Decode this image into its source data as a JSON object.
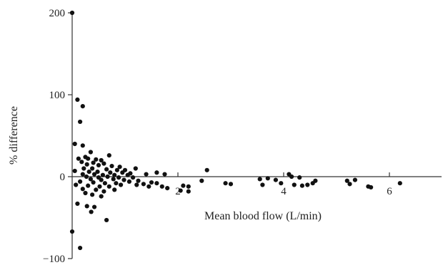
{
  "chart_data": {
    "type": "scatter",
    "xlabel": "Mean blood flow (L/min)",
    "ylabel": "% difference",
    "xlim": [
      0,
      7
    ],
    "ylim": [
      -100,
      200
    ],
    "xticks": [
      2,
      4,
      6
    ],
    "yticks": [
      -100,
      0,
      100,
      200
    ],
    "xtick_labels": [
      "2",
      "4",
      "6"
    ],
    "ytick_labels": [
      "−100",
      "0",
      "100",
      "200"
    ],
    "grid": false,
    "marker_color": "#111111",
    "points": [
      {
        "x": 0.0,
        "y": 200
      },
      {
        "x": 0.1,
        "y": 94
      },
      {
        "x": 0.2,
        "y": 86
      },
      {
        "x": 0.15,
        "y": 67
      },
      {
        "x": 0.05,
        "y": 40
      },
      {
        "x": 0.2,
        "y": 38
      },
      {
        "x": 0.35,
        "y": 30
      },
      {
        "x": 0.7,
        "y": 26
      },
      {
        "x": 0.25,
        "y": 24
      },
      {
        "x": 0.12,
        "y": 22
      },
      {
        "x": 0.3,
        "y": 22
      },
      {
        "x": 0.45,
        "y": 21
      },
      {
        "x": 0.55,
        "y": 20
      },
      {
        "x": 0.18,
        "y": 18
      },
      {
        "x": 0.4,
        "y": 17
      },
      {
        "x": 0.6,
        "y": 16
      },
      {
        "x": 0.28,
        "y": 15
      },
      {
        "x": 0.5,
        "y": 14
      },
      {
        "x": 0.75,
        "y": 13
      },
      {
        "x": 0.9,
        "y": 12
      },
      {
        "x": 0.22,
        "y": 10
      },
      {
        "x": 0.38,
        "y": 10
      },
      {
        "x": 0.65,
        "y": 9
      },
      {
        "x": 0.85,
        "y": 8
      },
      {
        "x": 1.0,
        "y": 8
      },
      {
        "x": 1.2,
        "y": 10
      },
      {
        "x": 0.05,
        "y": 7
      },
      {
        "x": 0.32,
        "y": 6
      },
      {
        "x": 0.48,
        "y": 6
      },
      {
        "x": 0.72,
        "y": 5
      },
      {
        "x": 0.95,
        "y": 5
      },
      {
        "x": 1.1,
        "y": 4
      },
      {
        "x": 0.2,
        "y": 3
      },
      {
        "x": 0.42,
        "y": 3
      },
      {
        "x": 0.58,
        "y": 2
      },
      {
        "x": 0.8,
        "y": 2
      },
      {
        "x": 1.05,
        "y": 2
      },
      {
        "x": 1.4,
        "y": 3
      },
      {
        "x": 0.27,
        "y": 0
      },
      {
        "x": 0.5,
        "y": -1
      },
      {
        "x": 0.67,
        "y": 0
      },
      {
        "x": 0.88,
        "y": -1
      },
      {
        "x": 1.15,
        "y": -1
      },
      {
        "x": 0.35,
        "y": -3
      },
      {
        "x": 0.55,
        "y": -4
      },
      {
        "x": 0.78,
        "y": -3
      },
      {
        "x": 0.98,
        "y": -4
      },
      {
        "x": 1.25,
        "y": -5
      },
      {
        "x": 0.15,
        "y": -6
      },
      {
        "x": 0.4,
        "y": -7
      },
      {
        "x": 0.62,
        "y": -8
      },
      {
        "x": 0.83,
        "y": -8
      },
      {
        "x": 1.08,
        "y": -6
      },
      {
        "x": 1.35,
        "y": -9
      },
      {
        "x": 1.5,
        "y": -7
      },
      {
        "x": 0.07,
        "y": -10
      },
      {
        "x": 0.3,
        "y": -11
      },
      {
        "x": 0.52,
        "y": -12
      },
      {
        "x": 0.7,
        "y": -12
      },
      {
        "x": 0.92,
        "y": -10
      },
      {
        "x": 1.22,
        "y": -10
      },
      {
        "x": 1.45,
        "y": -12
      },
      {
        "x": 0.2,
        "y": -15
      },
      {
        "x": 0.45,
        "y": -16
      },
      {
        "x": 0.6,
        "y": -18
      },
      {
        "x": 0.8,
        "y": -16
      },
      {
        "x": 0.25,
        "y": -20
      },
      {
        "x": 0.38,
        "y": -22
      },
      {
        "x": 0.55,
        "y": -24
      },
      {
        "x": 0.1,
        "y": -33
      },
      {
        "x": 0.28,
        "y": -36
      },
      {
        "x": 0.42,
        "y": -37
      },
      {
        "x": 0.36,
        "y": -43
      },
      {
        "x": 0.65,
        "y": -53
      },
      {
        "x": 0.0,
        "y": -67
      },
      {
        "x": 0.15,
        "y": -87
      },
      {
        "x": 1.6,
        "y": 5
      },
      {
        "x": 1.75,
        "y": 3
      },
      {
        "x": 1.6,
        "y": -8
      },
      {
        "x": 1.7,
        "y": -12
      },
      {
        "x": 1.8,
        "y": -14
      },
      {
        "x": 2.1,
        "y": -11
      },
      {
        "x": 2.2,
        "y": -12
      },
      {
        "x": 2.05,
        "y": -17
      },
      {
        "x": 2.2,
        "y": -18
      },
      {
        "x": 2.45,
        "y": -5
      },
      {
        "x": 2.55,
        "y": 8
      },
      {
        "x": 2.9,
        "y": -8
      },
      {
        "x": 3.0,
        "y": -9
      },
      {
        "x": 3.55,
        "y": -3
      },
      {
        "x": 3.6,
        "y": -10
      },
      {
        "x": 3.7,
        "y": -2
      },
      {
        "x": 3.85,
        "y": -4
      },
      {
        "x": 3.95,
        "y": -8
      },
      {
        "x": 4.1,
        "y": 3
      },
      {
        "x": 4.15,
        "y": 0
      },
      {
        "x": 4.2,
        "y": -10
      },
      {
        "x": 4.3,
        "y": -1
      },
      {
        "x": 4.35,
        "y": -11
      },
      {
        "x": 4.45,
        "y": -10
      },
      {
        "x": 4.55,
        "y": -8
      },
      {
        "x": 4.6,
        "y": -5
      },
      {
        "x": 5.2,
        "y": -5
      },
      {
        "x": 5.25,
        "y": -9
      },
      {
        "x": 5.35,
        "y": -4
      },
      {
        "x": 5.6,
        "y": -12
      },
      {
        "x": 5.65,
        "y": -13
      },
      {
        "x": 6.2,
        "y": -8
      }
    ]
  }
}
